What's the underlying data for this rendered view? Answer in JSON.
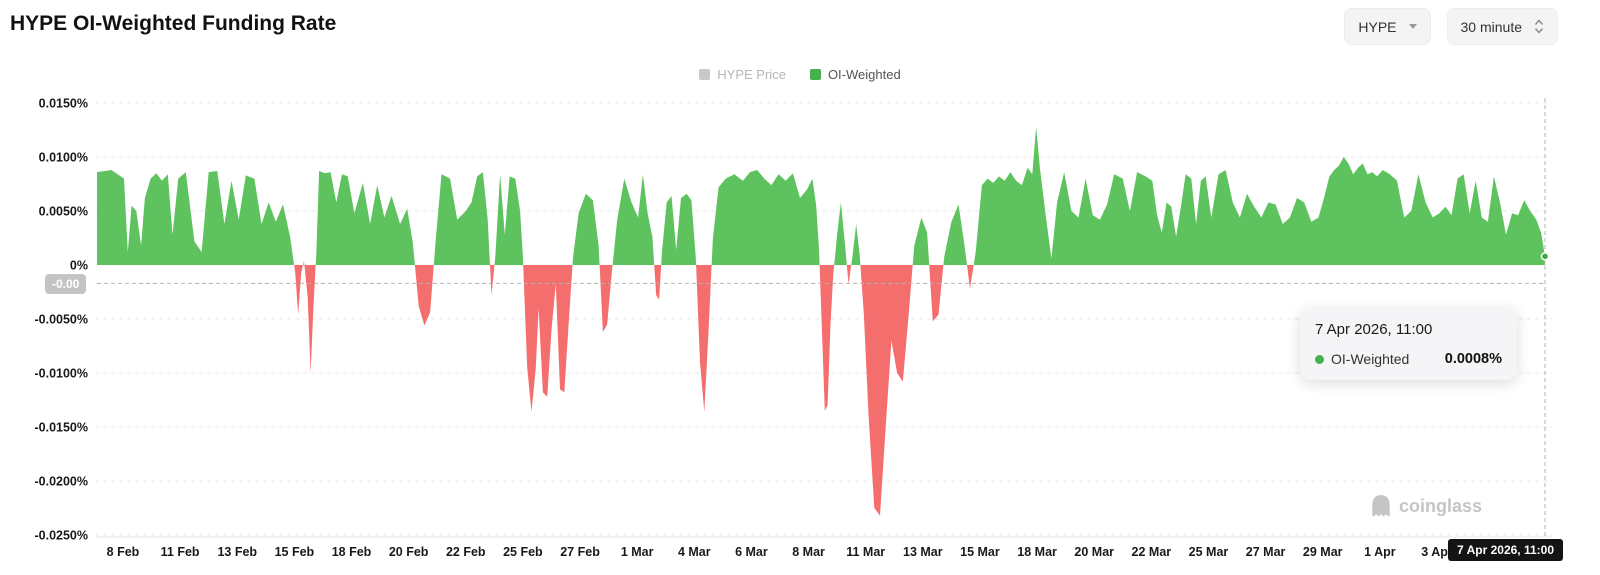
{
  "header": {
    "title": "HYPE OI-Weighted Funding Rate",
    "coin_select": {
      "value": "HYPE"
    },
    "interval_select": {
      "value": "30 minute"
    }
  },
  "legend": {
    "items": [
      {
        "label": "HYPE Price",
        "color": "#c9c9c9",
        "active": false
      },
      {
        "label": "OI-Weighted",
        "color": "#45b14a",
        "active": true
      }
    ]
  },
  "tooltip": {
    "date": "7 Apr 2026, 11:00",
    "rows": [
      {
        "label": "OI-Weighted",
        "value": "0.0008%",
        "color": "#45b14a"
      }
    ]
  },
  "crosshair": {
    "x_label": "7 Apr 2026, 11:00",
    "y_label": "-0.00",
    "x_day": 58.46,
    "y_value": -0.0017
  },
  "watermark": {
    "text": "coinglass"
  },
  "chart_data": {
    "type": "area",
    "title": "HYPE OI-Weighted Funding Rate",
    "series_name": "OI-Weighted",
    "unit": "%",
    "grid": true,
    "legend_position": "top-center",
    "ylim": [
      -0.025,
      0.015
    ],
    "colors": {
      "positive": "#5ec35e",
      "negative": "#f56e6e",
      "marker": "#3aa843"
    },
    "last_value": 0.0008,
    "end_day": 58.46,
    "y_ticks": [
      {
        "label": "0.0150%",
        "value": 0.015
      },
      {
        "label": "0.0100%",
        "value": 0.01
      },
      {
        "label": "0.0050%",
        "value": 0.005
      },
      {
        "label": "0%",
        "value": 0
      },
      {
        "label": "-0.0050%",
        "value": -0.005
      },
      {
        "label": "-0.0100%",
        "value": -0.01
      },
      {
        "label": "-0.0150%",
        "value": -0.015
      },
      {
        "label": "-0.0200%",
        "value": -0.02
      },
      {
        "label": "-0.0250%",
        "value": -0.025
      }
    ],
    "x_ticks": [
      {
        "label": "8 Feb",
        "day": 0
      },
      {
        "label": "11 Feb",
        "day": 3
      },
      {
        "label": "13 Feb",
        "day": 5
      },
      {
        "label": "15 Feb",
        "day": 7
      },
      {
        "label": "18 Feb",
        "day": 10
      },
      {
        "label": "20 Feb",
        "day": 12
      },
      {
        "label": "22 Feb",
        "day": 14
      },
      {
        "label": "25 Feb",
        "day": 17
      },
      {
        "label": "27 Feb",
        "day": 19
      },
      {
        "label": "1 Mar",
        "day": 21
      },
      {
        "label": "4 Mar",
        "day": 24
      },
      {
        "label": "6 Mar",
        "day": 26
      },
      {
        "label": "8 Mar",
        "day": 28
      },
      {
        "label": "11 Mar",
        "day": 31
      },
      {
        "label": "13 Mar",
        "day": 33
      },
      {
        "label": "15 Mar",
        "day": 35
      },
      {
        "label": "18 Mar",
        "day": 38
      },
      {
        "label": "20 Mar",
        "day": 40
      },
      {
        "label": "22 Mar",
        "day": 42
      },
      {
        "label": "25 Mar",
        "day": 45
      },
      {
        "label": "27 Mar",
        "day": 47
      },
      {
        "label": "29 Mar",
        "day": 49
      },
      {
        "label": "1 Apr",
        "day": 52
      },
      {
        "label": "3 Apr",
        "day": 54
      }
    ],
    "points": [
      [
        -0.45,
        0.0086
      ],
      [
        -0.2,
        0.0088
      ],
      [
        0.05,
        0.008
      ],
      [
        0.25,
        0.0012
      ],
      [
        0.45,
        0.0055
      ],
      [
        0.7,
        0.005
      ],
      [
        0.95,
        0.0018
      ],
      [
        1.15,
        0.0062
      ],
      [
        1.45,
        0.008
      ],
      [
        1.75,
        0.0085
      ],
      [
        2.05,
        0.0078
      ],
      [
        2.35,
        0.0084
      ],
      [
        2.6,
        0.0028
      ],
      [
        2.9,
        0.008
      ],
      [
        3.2,
        0.0086
      ],
      [
        3.5,
        0.0022
      ],
      [
        3.75,
        0.0012
      ],
      [
        4.0,
        0.0086
      ],
      [
        4.3,
        0.0087
      ],
      [
        4.55,
        0.0038
      ],
      [
        4.8,
        0.0078
      ],
      [
        5.05,
        0.0042
      ],
      [
        5.3,
        0.0083
      ],
      [
        5.6,
        0.008
      ],
      [
        5.85,
        0.0038
      ],
      [
        6.1,
        0.0058
      ],
      [
        6.35,
        0.004
      ],
      [
        6.6,
        0.0056
      ],
      [
        6.85,
        0.0026
      ],
      [
        7.05,
        -0.0008
      ],
      [
        7.2,
        -0.0046
      ],
      [
        7.35,
        -0.0008
      ],
      [
        7.5,
        0.0004
      ],
      [
        7.7,
        -0.003
      ],
      [
        7.85,
        -0.01
      ],
      [
        8.0,
        -0.004
      ],
      [
        8.15,
        0.001
      ],
      [
        8.3,
        0.0087
      ],
      [
        8.6,
        0.0085
      ],
      [
        8.9,
        0.0086
      ],
      [
        9.2,
        0.0058
      ],
      [
        9.5,
        0.0084
      ],
      [
        9.8,
        0.0082
      ],
      [
        10.1,
        0.0048
      ],
      [
        10.4,
        0.0076
      ],
      [
        10.65,
        0.0038
      ],
      [
        10.9,
        0.0074
      ],
      [
        11.15,
        0.0044
      ],
      [
        11.4,
        0.0064
      ],
      [
        11.7,
        0.0038
      ],
      [
        11.95,
        0.0052
      ],
      [
        12.15,
        0.002
      ],
      [
        12.35,
        -0.0038
      ],
      [
        12.55,
        -0.0056
      ],
      [
        12.75,
        -0.0044
      ],
      [
        12.95,
        0.0024
      ],
      [
        13.15,
        0.0084
      ],
      [
        13.45,
        0.008
      ],
      [
        13.7,
        0.0042
      ],
      [
        14.0,
        0.005
      ],
      [
        14.3,
        0.0058
      ],
      [
        14.6,
        0.0082
      ],
      [
        14.9,
        0.0086
      ],
      [
        15.15,
        0.0042
      ],
      [
        15.35,
        -0.0028
      ],
      [
        15.55,
        0.0008
      ],
      [
        15.8,
        0.0084
      ],
      [
        16.05,
        0.0028
      ],
      [
        16.3,
        0.0082
      ],
      [
        16.6,
        0.008
      ],
      [
        16.85,
        0.005
      ],
      [
        17.0,
        0.0008
      ],
      [
        17.15,
        -0.0095
      ],
      [
        17.3,
        -0.0136
      ],
      [
        17.45,
        -0.0095
      ],
      [
        17.55,
        -0.004
      ],
      [
        17.7,
        -0.0118
      ],
      [
        17.85,
        -0.0122
      ],
      [
        18.0,
        -0.006
      ],
      [
        18.15,
        -0.0018
      ],
      [
        18.3,
        -0.0115
      ],
      [
        18.45,
        -0.0118
      ],
      [
        18.6,
        -0.0055
      ],
      [
        18.75,
        0.0006
      ],
      [
        18.95,
        0.0048
      ],
      [
        19.2,
        0.0066
      ],
      [
        19.45,
        0.006
      ],
      [
        19.65,
        0.0018
      ],
      [
        19.8,
        -0.0062
      ],
      [
        19.95,
        -0.0055
      ],
      [
        20.1,
        -0.001
      ],
      [
        20.3,
        0.0042
      ],
      [
        20.55,
        0.008
      ],
      [
        20.8,
        0.0058
      ],
      [
        21.05,
        0.0044
      ],
      [
        21.3,
        0.0084
      ],
      [
        21.55,
        0.0048
      ],
      [
        21.8,
        0.0026
      ],
      [
        22.0,
        -0.0028
      ],
      [
        22.15,
        -0.0032
      ],
      [
        22.3,
        0.0012
      ],
      [
        22.55,
        0.0058
      ],
      [
        22.8,
        0.0064
      ],
      [
        23.05,
        0.0014
      ],
      [
        23.3,
        0.0062
      ],
      [
        23.6,
        0.0066
      ],
      [
        23.85,
        0.006
      ],
      [
        24.05,
        0.0008
      ],
      [
        24.2,
        -0.009
      ],
      [
        24.35,
        -0.0136
      ],
      [
        24.5,
        -0.006
      ],
      [
        24.65,
        0.0025
      ],
      [
        24.85,
        0.0072
      ],
      [
        25.1,
        0.008
      ],
      [
        25.4,
        0.0084
      ],
      [
        25.7,
        0.0078
      ],
      [
        25.95,
        0.0086
      ],
      [
        26.2,
        0.0088
      ],
      [
        26.45,
        0.008
      ],
      [
        26.7,
        0.0074
      ],
      [
        26.95,
        0.0084
      ],
      [
        27.2,
        0.0078
      ],
      [
        27.45,
        0.0085
      ],
      [
        27.7,
        0.0062
      ],
      [
        27.95,
        0.007
      ],
      [
        28.2,
        0.008
      ],
      [
        28.4,
        0.0055
      ],
      [
        28.55,
        0.0015
      ],
      [
        28.7,
        -0.006
      ],
      [
        28.85,
        -0.0135
      ],
      [
        29.0,
        -0.013
      ],
      [
        29.15,
        -0.0055
      ],
      [
        29.3,
        -0.0008
      ],
      [
        29.5,
        0.0028
      ],
      [
        29.7,
        0.0058
      ],
      [
        29.9,
        0.0022
      ],
      [
        30.1,
        -0.0018
      ],
      [
        30.3,
        0.0008
      ],
      [
        30.5,
        0.0038
      ],
      [
        30.7,
        0.0006
      ],
      [
        30.9,
        -0.0045
      ],
      [
        31.1,
        -0.014
      ],
      [
        31.3,
        -0.0225
      ],
      [
        31.5,
        -0.0232
      ],
      [
        31.7,
        -0.015
      ],
      [
        31.9,
        -0.007
      ],
      [
        32.1,
        -0.01
      ],
      [
        32.3,
        -0.0108
      ],
      [
        32.5,
        -0.0048
      ],
      [
        32.7,
        0.0018
      ],
      [
        32.95,
        0.0044
      ],
      [
        33.15,
        0.003
      ],
      [
        33.35,
        -0.0052
      ],
      [
        33.55,
        -0.0046
      ],
      [
        33.75,
        0.0008
      ],
      [
        34.0,
        0.004
      ],
      [
        34.25,
        0.0056
      ],
      [
        34.45,
        0.002
      ],
      [
        34.65,
        -0.0022
      ],
      [
        34.85,
        0.0012
      ],
      [
        35.1,
        0.0074
      ],
      [
        35.4,
        0.008
      ],
      [
        35.7,
        0.0076
      ],
      [
        36.0,
        0.0082
      ],
      [
        36.3,
        0.0078
      ],
      [
        36.6,
        0.0086
      ],
      [
        36.9,
        0.0078
      ],
      [
        37.2,
        0.0074
      ],
      [
        37.5,
        0.009
      ],
      [
        37.75,
        0.0084
      ],
      [
        37.95,
        0.0128
      ],
      [
        38.1,
        0.009
      ],
      [
        38.3,
        0.0046
      ],
      [
        38.5,
        0.0006
      ],
      [
        38.7,
        0.0058
      ],
      [
        38.95,
        0.0086
      ],
      [
        39.2,
        0.005
      ],
      [
        39.45,
        0.0044
      ],
      [
        39.7,
        0.008
      ],
      [
        39.95,
        0.0046
      ],
      [
        40.2,
        0.0042
      ],
      [
        40.45,
        0.0056
      ],
      [
        40.7,
        0.0084
      ],
      [
        41.0,
        0.008
      ],
      [
        41.25,
        0.005
      ],
      [
        41.5,
        0.0086
      ],
      [
        41.8,
        0.0082
      ],
      [
        42.05,
        0.0078
      ],
      [
        42.3,
        0.0046
      ],
      [
        42.55,
        0.003
      ],
      [
        42.8,
        0.0058
      ],
      [
        43.05,
        0.0054
      ],
      [
        43.3,
        0.0026
      ],
      [
        43.55,
        0.0054
      ],
      [
        43.8,
        0.0084
      ],
      [
        44.1,
        0.008
      ],
      [
        44.35,
        0.0038
      ],
      [
        44.6,
        0.0078
      ],
      [
        44.85,
        0.0082
      ],
      [
        45.1,
        0.0044
      ],
      [
        45.35,
        0.0084
      ],
      [
        45.6,
        0.0088
      ],
      [
        45.85,
        0.0058
      ],
      [
        46.1,
        0.0044
      ],
      [
        46.35,
        0.0066
      ],
      [
        46.6,
        0.0054
      ],
      [
        46.85,
        0.0044
      ],
      [
        47.1,
        0.0058
      ],
      [
        47.35,
        0.0056
      ],
      [
        47.6,
        0.0038
      ],
      [
        47.85,
        0.0044
      ],
      [
        48.1,
        0.0062
      ],
      [
        48.35,
        0.0058
      ],
      [
        48.6,
        0.004
      ],
      [
        48.85,
        0.0044
      ],
      [
        49.1,
        0.0064
      ],
      [
        49.35,
        0.0082
      ],
      [
        49.6,
        0.0088
      ],
      [
        49.85,
        0.0092
      ],
      [
        50.1,
        0.01
      ],
      [
        50.35,
        0.0094
      ],
      [
        50.6,
        0.0084
      ],
      [
        50.85,
        0.009
      ],
      [
        51.1,
        0.0094
      ],
      [
        51.35,
        0.0084
      ],
      [
        51.6,
        0.0086
      ],
      [
        51.85,
        0.0082
      ],
      [
        52.1,
        0.0088
      ],
      [
        52.35,
        0.0084
      ],
      [
        52.6,
        0.0078
      ],
      [
        52.85,
        0.0044
      ],
      [
        53.1,
        0.005
      ],
      [
        53.35,
        0.0084
      ],
      [
        53.6,
        0.0058
      ],
      [
        53.85,
        0.0044
      ],
      [
        54.1,
        0.0048
      ],
      [
        54.35,
        0.0054
      ],
      [
        54.6,
        0.0046
      ],
      [
        54.85,
        0.008
      ],
      [
        55.1,
        0.0084
      ],
      [
        55.35,
        0.0048
      ],
      [
        55.6,
        0.0078
      ],
      [
        55.85,
        0.0044
      ],
      [
        56.1,
        0.004
      ],
      [
        56.35,
        0.0082
      ],
      [
        56.6,
        0.0058
      ],
      [
        56.85,
        0.0028
      ],
      [
        57.1,
        0.0048
      ],
      [
        57.35,
        0.0046
      ],
      [
        57.6,
        0.006
      ],
      [
        57.85,
        0.005
      ],
      [
        58.1,
        0.0042
      ],
      [
        58.3,
        0.003
      ],
      [
        58.46,
        0.0008
      ]
    ]
  }
}
